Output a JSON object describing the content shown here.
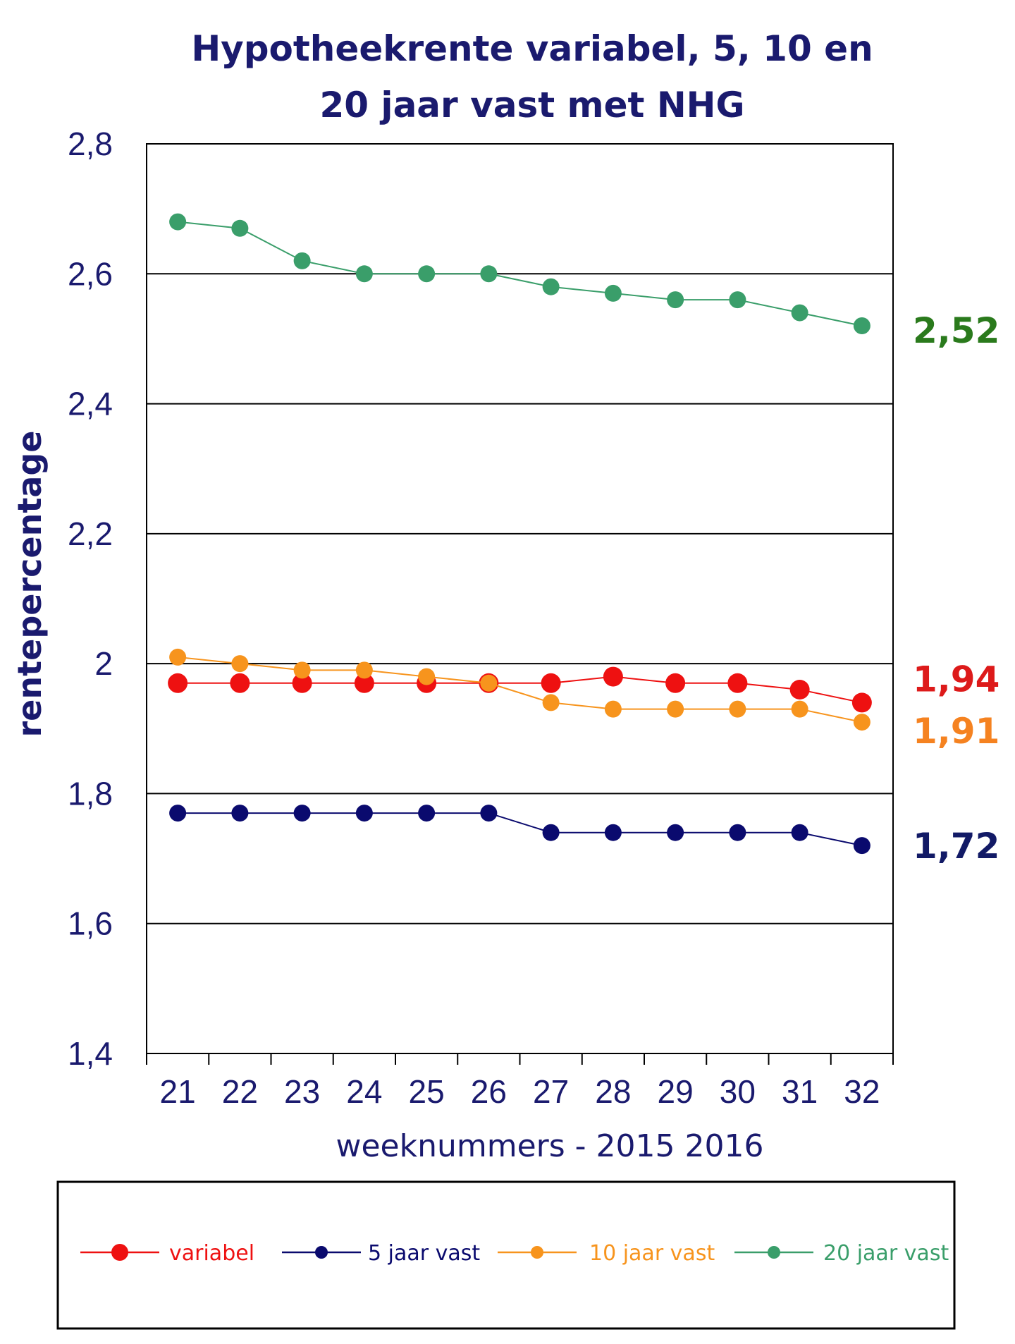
{
  "chart_data": {
    "type": "line",
    "title": [
      "Hypotheekrente variabel, 5, 10 en",
      "20 jaar vast met NHG"
    ],
    "xlabel": "weeknummers - 2015 2016",
    "ylabel": "rentepercentage",
    "categories": [
      "21",
      "22",
      "23",
      "24",
      "25",
      "26",
      "27",
      "28",
      "29",
      "30",
      "31",
      "32"
    ],
    "y_ticks": [
      "1,4",
      "1,6",
      "1,8",
      "2",
      "2,2",
      "2,4",
      "2,6",
      "2,8"
    ],
    "ylim": [
      1.4,
      2.8
    ],
    "grid": true,
    "legend_position": "bottom",
    "series": [
      {
        "name": "variabel",
        "color": "#ee1111",
        "marker": "large",
        "values": [
          1.97,
          1.97,
          1.97,
          1.97,
          1.97,
          1.97,
          1.97,
          1.98,
          1.97,
          1.97,
          1.96,
          1.94
        ],
        "end_label": "1,94",
        "end_label_color": "#dd1a1a"
      },
      {
        "name": "5 jaar vast",
        "color": "#0a0a6e",
        "marker": "medium",
        "values": [
          1.77,
          1.77,
          1.77,
          1.77,
          1.77,
          1.77,
          1.74,
          1.74,
          1.74,
          1.74,
          1.74,
          1.72
        ],
        "end_label": "1,72",
        "end_label_color": "#121a66"
      },
      {
        "name": "10 jaar vast",
        "color": "#f7941d",
        "marker": "medium",
        "values": [
          2.01,
          2.0,
          1.99,
          1.99,
          1.98,
          1.97,
          1.94,
          1.93,
          1.93,
          1.93,
          1.93,
          1.91
        ],
        "end_label": "1,91",
        "end_label_color": "#f58220"
      },
      {
        "name": "20 jaar vast",
        "color": "#3a9e6a",
        "marker": "medium",
        "values": [
          2.68,
          2.67,
          2.62,
          2.6,
          2.6,
          2.6,
          2.58,
          2.57,
          2.56,
          2.56,
          2.54,
          2.52
        ],
        "end_label": "2,52",
        "end_label_color": "#2a7a1c"
      }
    ],
    "colors": {
      "title": "#1a1a6e",
      "ylabel": "#1a1a6e",
      "tick": "#1a1a6e",
      "grid": "#000000"
    }
  }
}
